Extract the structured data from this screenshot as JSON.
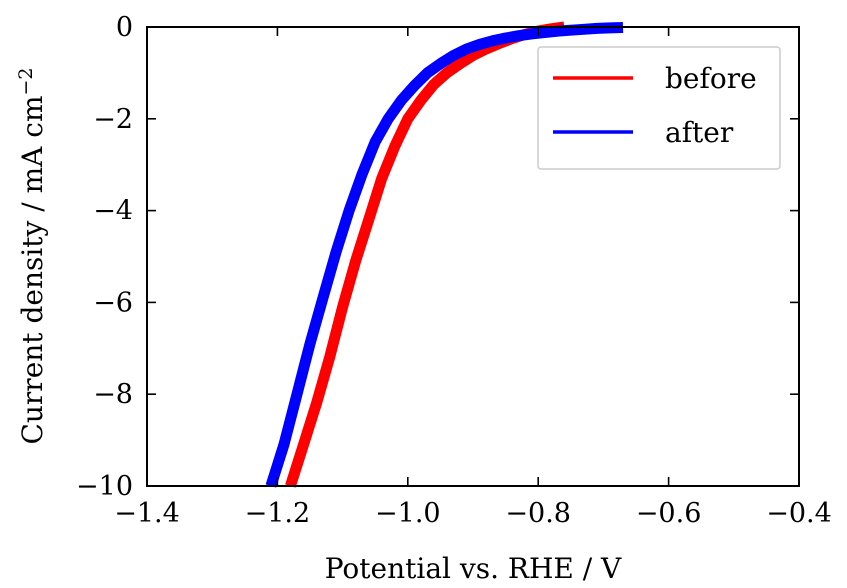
{
  "chart_data": {
    "type": "line",
    "title": "",
    "xlabel": "Potential vs. RHE / V",
    "ylabel": "Current density / mA cm",
    "ylabel_sup": "−2",
    "xlim": [
      -1.4,
      -0.4
    ],
    "ylim": [
      -10,
      0
    ],
    "x_ticks": [
      -1.4,
      -1.2,
      -1.0,
      -0.8,
      -0.6,
      -0.4
    ],
    "x_tick_labels": [
      "−1.4",
      "−1.2",
      "−1.0",
      "−0.8",
      "−0.6",
      "−0.4"
    ],
    "y_ticks": [
      0,
      -2,
      -4,
      -6,
      -8,
      -10
    ],
    "y_tick_labels": [
      "0",
      "−2",
      "−4",
      "−6",
      "−8",
      "−10"
    ],
    "grid": false,
    "legend_position": "top-right",
    "series": [
      {
        "name": "before",
        "color": "#ff0000",
        "x": [
          -1.18,
          -1.16,
          -1.14,
          -1.12,
          -1.1,
          -1.08,
          -1.06,
          -1.04,
          -1.02,
          -1.0,
          -0.98,
          -0.96,
          -0.94,
          -0.92,
          -0.9,
          -0.88,
          -0.86,
          -0.84,
          -0.82,
          -0.8,
          -0.78,
          -0.76
        ],
        "y": [
          -10.0,
          -9.1,
          -8.2,
          -7.2,
          -6.1,
          -5.1,
          -4.2,
          -3.3,
          -2.6,
          -2.0,
          -1.6,
          -1.25,
          -1.0,
          -0.8,
          -0.62,
          -0.48,
          -0.36,
          -0.25,
          -0.16,
          -0.09,
          -0.04,
          0.0
        ]
      },
      {
        "name": "after",
        "color": "#0000ff",
        "x": [
          -1.21,
          -1.19,
          -1.17,
          -1.15,
          -1.13,
          -1.11,
          -1.09,
          -1.07,
          -1.05,
          -1.03,
          -1.01,
          -0.99,
          -0.97,
          -0.95,
          -0.93,
          -0.91,
          -0.89,
          -0.87,
          -0.85,
          -0.83,
          -0.81,
          -0.79,
          -0.77,
          -0.75,
          -0.73,
          -0.71,
          -0.69,
          -0.67
        ],
        "y": [
          -10.0,
          -9.1,
          -8.0,
          -6.9,
          -5.9,
          -4.9,
          -4.0,
          -3.2,
          -2.5,
          -2.0,
          -1.6,
          -1.28,
          -1.0,
          -0.8,
          -0.62,
          -0.48,
          -0.38,
          -0.3,
          -0.24,
          -0.19,
          -0.15,
          -0.12,
          -0.09,
          -0.07,
          -0.05,
          -0.03,
          -0.02,
          -0.01
        ]
      }
    ]
  }
}
